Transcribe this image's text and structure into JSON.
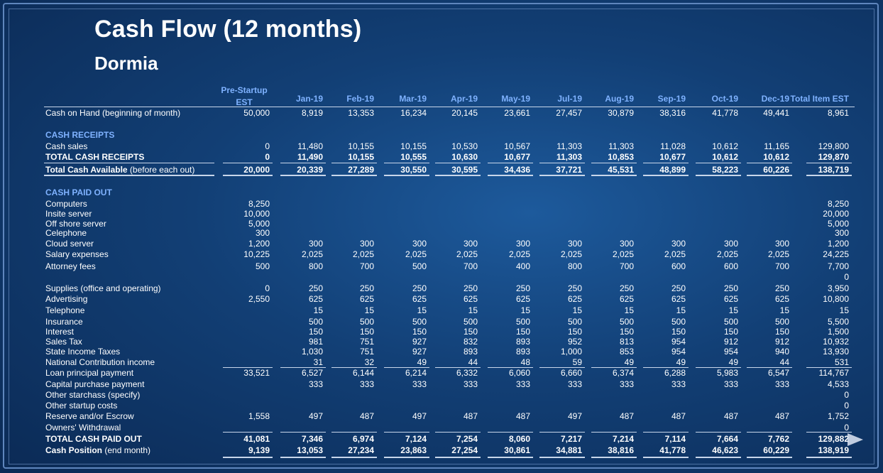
{
  "title": "Cash Flow (12 months)",
  "subtitle": "Dormia",
  "columns": [
    "Pre-Startup EST",
    "Jan-19",
    "Feb-19",
    "Mar-19",
    "Apr-19",
    "May-19",
    "Jul-19",
    "Aug-19",
    "Sep-19",
    "Oct-19",
    "Dec-19",
    "Total Item EST"
  ],
  "column_header_first": {
    "line1": "Pre-Startup",
    "line2": "EST"
  },
  "rows": [
    {
      "label": "Cash on Hand (beginning of month)",
      "style": "normal",
      "y": 0,
      "values": [
        "50,000",
        "8,919",
        "13,353",
        "16,234",
        "20,145",
        "23,661",
        "27,457",
        "30,879",
        "38,316",
        "41,778",
        "49,441",
        "8,961"
      ]
    },
    {
      "label": "CASH RECEIPTS",
      "style": "section",
      "values": []
    },
    {
      "label": "Cash sales",
      "style": "normal",
      "values": [
        "0",
        "11,480",
        "10,155",
        "10,155",
        "10,530",
        "10,567",
        "11,303",
        "11,303",
        "11,028",
        "10,612",
        "11,165",
        "129,800"
      ]
    },
    {
      "label": "TOTAL CASH RECEIPTS",
      "style": "bold",
      "values": [
        "0",
        "11,490",
        "10,155",
        "10,555",
        "10,630",
        "10,677",
        "11,303",
        "10,853",
        "10,677",
        "10,612",
        "10,612",
        "129,870"
      ]
    },
    {
      "label": "Total Cash Available",
      "note": " (before each out)",
      "style": "bold",
      "values": [
        "20,000",
        "20,339",
        "27,289",
        "30,550",
        "30,595",
        "34,436",
        "37,721",
        "45,531",
        "48,899",
        "58,223",
        "60,226",
        "138,719"
      ]
    },
    {
      "label": "CASH PAID OUT",
      "style": "section",
      "values": []
    },
    {
      "label": "Computers",
      "style": "normal",
      "values": [
        "8,250",
        "",
        "",
        "",
        "",
        "",
        "",
        "",
        "",
        "",
        "",
        "8,250"
      ]
    },
    {
      "label": "Insite server",
      "style": "normal",
      "values": [
        "10,000",
        "",
        "",
        "",
        "",
        "",
        "",
        "",
        "",
        "",
        "",
        "20,000"
      ]
    },
    {
      "label": "Off shore server",
      "style": "normal",
      "values": [
        "5,000",
        "",
        "",
        "",
        "",
        "",
        "",
        "",
        "",
        "",
        "",
        "5,000"
      ]
    },
    {
      "label": "Celephone",
      "style": "normal",
      "values": [
        "300",
        "",
        "",
        "",
        "",
        "",
        "",
        "",
        "",
        "",
        "",
        "300"
      ]
    },
    {
      "label": "Cloud server",
      "style": "normal",
      "values": [
        "1,200",
        "300",
        "300",
        "300",
        "300",
        "300",
        "300",
        "300",
        "300",
        "300",
        "300",
        "1,200"
      ]
    },
    {
      "label": "Salary expenses",
      "style": "normal",
      "values": [
        "10,225",
        "2,025",
        "2,025",
        "2,025",
        "2,025",
        "2,025",
        "2,025",
        "2,025",
        "2,025",
        "2,025",
        "2,025",
        "24,225"
      ]
    },
    {
      "label": "Attorney fees",
      "style": "normal",
      "values": [
        "500",
        "800",
        "700",
        "500",
        "700",
        "400",
        "800",
        "700",
        "600",
        "600",
        "700",
        "7,700"
      ]
    },
    {
      "label": "",
      "style": "normal",
      "values": [
        "",
        "",
        "",
        "",
        "",
        "",
        "",
        "",
        "",
        "",
        "",
        "0"
      ]
    },
    {
      "label": "Supplies (office and operating)",
      "style": "normal",
      "values": [
        "0",
        "250",
        "250",
        "250",
        "250",
        "250",
        "250",
        "250",
        "250",
        "250",
        "250",
        "3,950"
      ]
    },
    {
      "label": "Advertising",
      "style": "normal",
      "values": [
        "2,550",
        "625",
        "625",
        "625",
        "625",
        "625",
        "625",
        "625",
        "625",
        "625",
        "625",
        "10,800"
      ]
    },
    {
      "label": "Telephone",
      "style": "normal",
      "values": [
        "",
        "15",
        "15",
        "15",
        "15",
        "15",
        "15",
        "15",
        "15",
        "15",
        "15",
        "15"
      ]
    },
    {
      "label": "Insurance",
      "style": "normal",
      "values": [
        "",
        "500",
        "500",
        "500",
        "500",
        "500",
        "500",
        "500",
        "500",
        "500",
        "500",
        "5,500"
      ]
    },
    {
      "label": "Interest",
      "style": "normal",
      "values": [
        "",
        "150",
        "150",
        "150",
        "150",
        "150",
        "150",
        "150",
        "150",
        "150",
        "150",
        "1,500"
      ]
    },
    {
      "label": "Sales Tax",
      "style": "normal",
      "values": [
        "",
        "981",
        "751",
        "927",
        "832",
        "893",
        "952",
        "813",
        "954",
        "912",
        "912",
        "10,932"
      ]
    },
    {
      "label": "State Income Taxes",
      "style": "normal",
      "values": [
        "",
        "1,030",
        "751",
        "927",
        "893",
        "893",
        "1,000",
        "853",
        "954",
        "954",
        "940",
        "13,930"
      ]
    },
    {
      "label": "National Contribution income",
      "style": "normal",
      "values": [
        "",
        "31",
        "32",
        "49",
        "44",
        "48",
        "59",
        "49",
        "49",
        "49",
        "44",
        "531"
      ]
    },
    {
      "label": "Loan principal payment",
      "style": "normal",
      "values": [
        "33,521",
        "6,527",
        "6,144",
        "6,214",
        "6,332",
        "6,060",
        "6,660",
        "6,374",
        "6,288",
        "5,983",
        "6,547",
        "114,767"
      ]
    },
    {
      "label": "Capital purchase payment",
      "style": "normal",
      "values": [
        "",
        "333",
        "333",
        "333",
        "333",
        "333",
        "333",
        "333",
        "333",
        "333",
        "333",
        "4,533"
      ]
    },
    {
      "label": "Other starchass (specify)",
      "style": "normal",
      "values": [
        "",
        "",
        "",
        "",
        "",
        "",
        "",
        "",
        "",
        "",
        "",
        "0"
      ]
    },
    {
      "label": "Other startup costs",
      "style": "normal",
      "values": [
        "",
        "",
        "",
        "",
        "",
        "",
        "",
        "",
        "",
        "",
        "",
        "0"
      ]
    },
    {
      "label": "Reserve and/or Escrow",
      "style": "normal",
      "values": [
        "1,558",
        "497",
        "487",
        "497",
        "487",
        "487",
        "497",
        "487",
        "487",
        "487",
        "487",
        "1,752"
      ]
    },
    {
      "label": "Owners' Withdrawal",
      "style": "normal",
      "values": [
        "",
        "",
        "",
        "",
        "",
        "",
        "",
        "",
        "",
        "",
        "",
        "0"
      ]
    },
    {
      "label": "TOTAL CASH PAID OUT",
      "style": "bold",
      "values": [
        "41,081",
        "7,346",
        "6,974",
        "7,124",
        "7,254",
        "8,060",
        "7,217",
        "7,214",
        "7,114",
        "7,664",
        "7,762",
        "129,882"
      ]
    },
    {
      "label": "Cash Position",
      "note": " (end month)",
      "style": "bold",
      "values": [
        "9,139",
        "13,053",
        "27,234",
        "23,863",
        "27,254",
        "30,861",
        "34,881",
        "38,816",
        "41,778",
        "46,623",
        "60,229",
        "138,919"
      ]
    }
  ],
  "nav": {
    "next_icon": "next-slide-arrow-icon"
  }
}
